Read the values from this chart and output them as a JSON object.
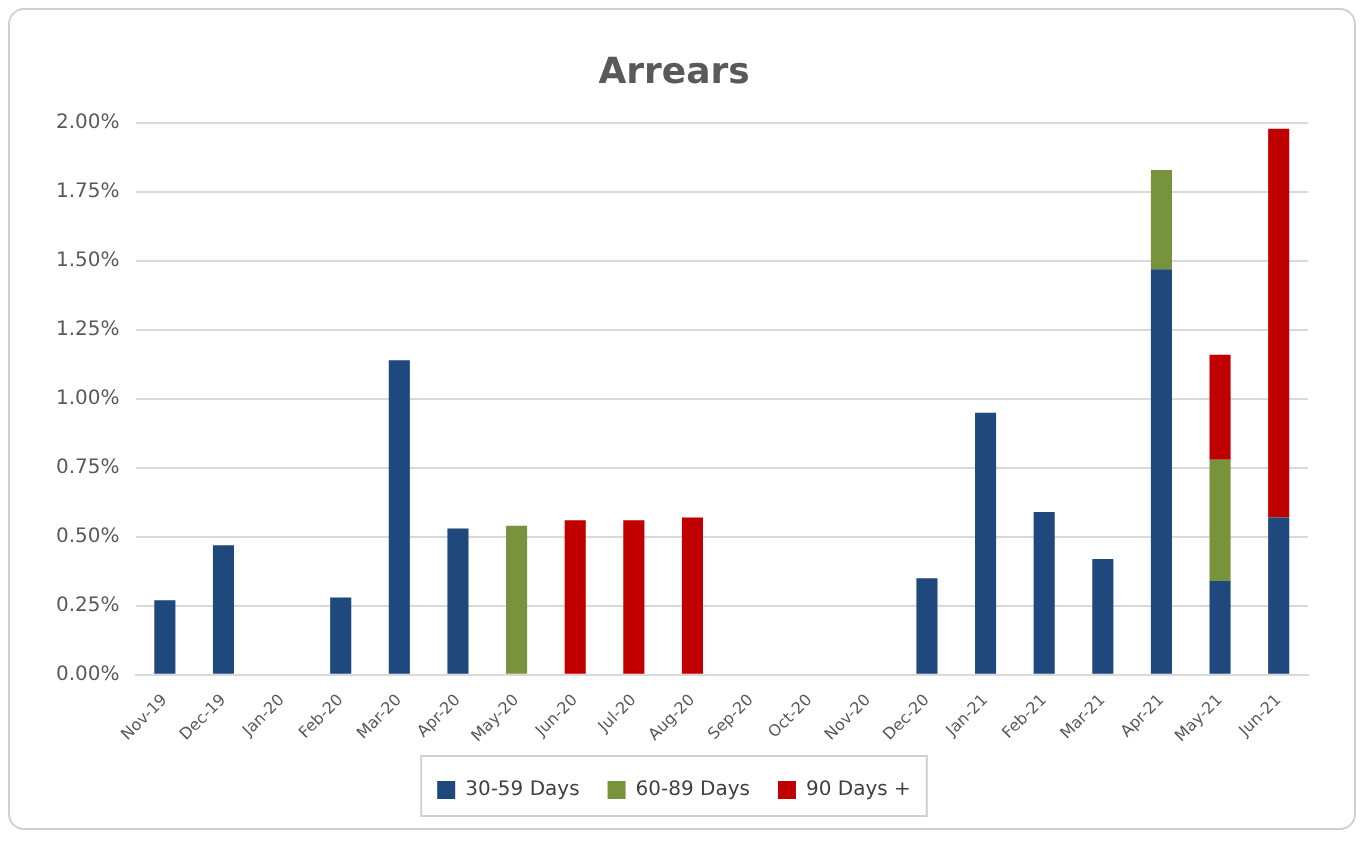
{
  "chart_data": {
    "type": "bar",
    "title": "Arrears",
    "stacked": true,
    "categories": [
      "Nov-19",
      "Dec-19",
      "Jan-20",
      "Feb-20",
      "Mar-20",
      "Apr-20",
      "May-20",
      "Jun-20",
      "Jul-20",
      "Aug-20",
      "Sep-20",
      "Oct-20",
      "Nov-20",
      "Dec-20",
      "Jan-21",
      "Feb-21",
      "Mar-21",
      "Apr-21",
      "May-21",
      "Jun-21"
    ],
    "series": [
      {
        "name": "30-59 Days",
        "color": "#1f497d",
        "values": [
          0.27,
          0.47,
          null,
          0.28,
          1.14,
          0.53,
          null,
          null,
          null,
          null,
          null,
          null,
          null,
          0.35,
          0.95,
          0.59,
          0.42,
          1.47,
          0.34,
          0.57
        ]
      },
      {
        "name": "60-89 Days",
        "color": "#77933c",
        "values": [
          null,
          null,
          null,
          null,
          null,
          null,
          0.54,
          null,
          null,
          null,
          null,
          null,
          null,
          null,
          null,
          null,
          null,
          0.36,
          0.44,
          null
        ]
      },
      {
        "name": "90 Days +",
        "color": "#c00000",
        "values": [
          null,
          null,
          null,
          null,
          null,
          null,
          null,
          0.56,
          0.56,
          0.57,
          null,
          null,
          null,
          null,
          null,
          null,
          null,
          null,
          0.38,
          1.41
        ]
      }
    ],
    "ylim": [
      0,
      2
    ],
    "yticks": [
      {
        "value": 0,
        "label": "0.00%"
      },
      {
        "value": 0.25,
        "label": "0.25%"
      },
      {
        "value": 0.5,
        "label": "0.50%"
      },
      {
        "value": 0.75,
        "label": "0.75%"
      },
      {
        "value": 1,
        "label": "1.00%"
      },
      {
        "value": 1.25,
        "label": "1.25%"
      },
      {
        "value": 1.5,
        "label": "1.50%"
      },
      {
        "value": 1.75,
        "label": "1.75%"
      },
      {
        "value": 2,
        "label": "2.00%"
      }
    ],
    "grid": "y",
    "legend": "bottom"
  }
}
